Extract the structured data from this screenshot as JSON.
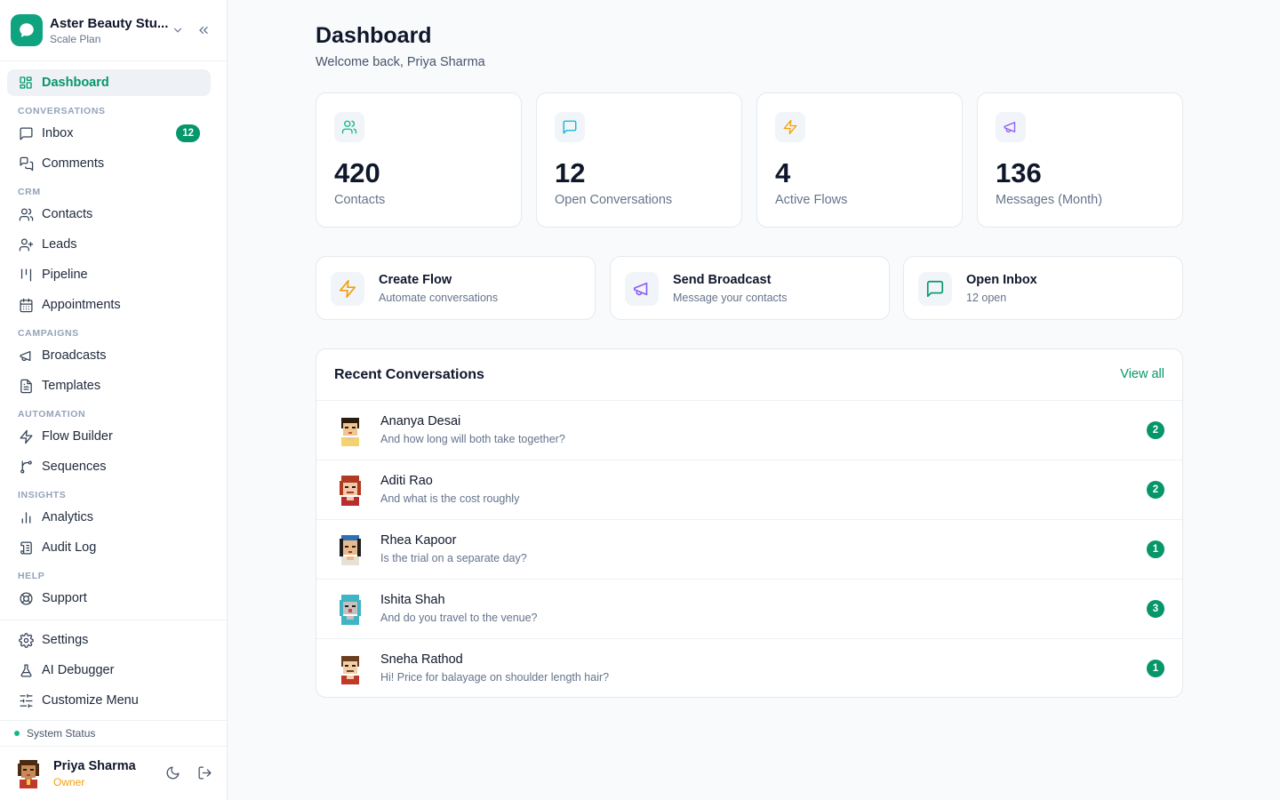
{
  "workspace": {
    "name": "Aster Beauty Stu...",
    "plan": "Scale Plan"
  },
  "sidebar": {
    "dashboard": "Dashboard",
    "sections": {
      "conversations": "CONVERSATIONS",
      "crm": "CRM",
      "campaigns": "CAMPAIGNS",
      "automation": "AUTOMATION",
      "insights": "INSIGHTS",
      "help": "HELP"
    },
    "items": {
      "inbox": "Inbox",
      "inbox_badge": "12",
      "comments": "Comments",
      "contacts": "Contacts",
      "leads": "Leads",
      "pipeline": "Pipeline",
      "appointments": "Appointments",
      "broadcasts": "Broadcasts",
      "templates": "Templates",
      "flow_builder": "Flow Builder",
      "sequences": "Sequences",
      "analytics": "Analytics",
      "audit_log": "Audit Log",
      "support": "Support",
      "settings": "Settings",
      "ai_debugger": "AI Debugger",
      "customize_menu": "Customize Menu"
    },
    "system_status": "System Status"
  },
  "user": {
    "name": "Priya Sharma",
    "role": "Owner"
  },
  "header": {
    "title": "Dashboard",
    "subtitle": "Welcome back, Priya Sharma"
  },
  "stats": [
    {
      "value": "420",
      "label": "Contacts",
      "icon": "users-icon",
      "color": "#10b981"
    },
    {
      "value": "12",
      "label": "Open Conversations",
      "icon": "message-square-icon",
      "color": "#06b6d4"
    },
    {
      "value": "4",
      "label": "Active Flows",
      "icon": "zap-icon",
      "color": "#f59e0b"
    },
    {
      "value": "136",
      "label": "Messages (Month)",
      "icon": "megaphone-icon",
      "color": "#8b5cf6"
    }
  ],
  "actions": [
    {
      "title": "Create Flow",
      "subtitle": "Automate conversations",
      "icon": "zap-icon",
      "color": "#f59e0b"
    },
    {
      "title": "Send Broadcast",
      "subtitle": "Message your contacts",
      "icon": "megaphone-icon",
      "color": "#8b5cf6"
    },
    {
      "title": "Open Inbox",
      "subtitle": "12 open",
      "icon": "message-square-icon",
      "color": "#059669"
    }
  ],
  "recent": {
    "title": "Recent Conversations",
    "view_all": "View all",
    "rows": [
      {
        "name": "Ananya Desai",
        "message": "And how long will both take together?",
        "unread": "2"
      },
      {
        "name": "Aditi Rao",
        "message": "And what is the cost roughly",
        "unread": "2"
      },
      {
        "name": "Rhea Kapoor",
        "message": "Is the trial on a separate day?",
        "unread": "1"
      },
      {
        "name": "Ishita Shah",
        "message": "And do you travel to the venue?",
        "unread": "3"
      },
      {
        "name": "Sneha Rathod",
        "message": "Hi! Price for balayage on shoulder length hair?",
        "unread": "1"
      }
    ]
  },
  "colors": {
    "accent": "#059669",
    "brand": "#10a37f"
  }
}
